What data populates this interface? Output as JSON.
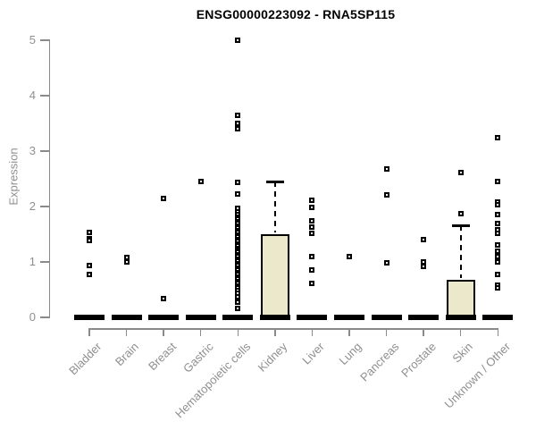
{
  "chart_data": {
    "type": "box",
    "title": "ENSG00000223092 - RNA5SP115",
    "ylabel": "Expression",
    "xlabel": "",
    "ylim": [
      0,
      5
    ],
    "yticks": [
      "0",
      "1",
      "2",
      "3",
      "4",
      "5"
    ],
    "grid": false,
    "legend": false,
    "categories": [
      "Bladder",
      "Brain",
      "Breast",
      "Gastric",
      "Hematopoietic cells",
      "Kidney",
      "Liver",
      "Lung",
      "Pancreas",
      "Prostate",
      "Skin",
      "Unknown / Other"
    ],
    "series": [
      {
        "name": "Bladder",
        "median": 0,
        "box": null,
        "points": [
          1.53,
          1.42,
          1.38,
          0.94,
          0.77
        ]
      },
      {
        "name": "Brain",
        "median": 0,
        "box": null,
        "points": [
          1.08,
          1.0
        ]
      },
      {
        "name": "Breast",
        "median": 0,
        "box": null,
        "points": [
          2.15,
          0.34
        ]
      },
      {
        "name": "Gastric",
        "median": 0,
        "box": null,
        "points": [
          2.45
        ]
      },
      {
        "name": "Hematopoietic cells",
        "median": 0,
        "box": null,
        "points": [
          5.0,
          3.65,
          3.5,
          3.4,
          2.44,
          2.23,
          1.97,
          1.9,
          1.85,
          1.81,
          1.77,
          1.73,
          1.69,
          1.65,
          1.61,
          1.57,
          1.53,
          1.49,
          1.45,
          1.41,
          1.37,
          1.33,
          1.29,
          1.25,
          1.21,
          1.17,
          1.13,
          1.09,
          1.05,
          1.01,
          0.97,
          0.93,
          0.89,
          0.85,
          0.81,
          0.77,
          0.73,
          0.69,
          0.65,
          0.61,
          0.57,
          0.53,
          0.49,
          0.44,
          0.37,
          0.27,
          0.16
        ]
      },
      {
        "name": "Kidney",
        "median": 0,
        "box": {
          "q1": 0,
          "q3": 1.5,
          "whisker_high": 2.45
        },
        "points": []
      },
      {
        "name": "Liver",
        "median": 0,
        "box": null,
        "points": [
          2.11,
          1.98,
          1.74,
          1.63,
          1.52,
          1.1,
          0.85,
          0.61
        ]
      },
      {
        "name": "Lung",
        "median": 0,
        "box": null,
        "points": [
          1.1
        ]
      },
      {
        "name": "Pancreas",
        "median": 0,
        "box": null,
        "points": [
          2.68,
          2.21,
          0.98
        ]
      },
      {
        "name": "Prostate",
        "median": 0,
        "box": null,
        "points": [
          1.4,
          1.0,
          0.92
        ]
      },
      {
        "name": "Skin",
        "median": 0,
        "box": {
          "q1": 0,
          "q3": 0.68,
          "whisker_high": 1.66
        },
        "points": [
          2.61,
          1.87
        ]
      },
      {
        "name": "Unknown / Other",
        "median": 0,
        "box": null,
        "points": [
          3.24,
          2.45,
          2.08,
          2.03,
          1.85,
          1.69,
          1.58,
          1.52,
          1.31,
          1.19,
          1.1,
          1.0,
          0.77,
          0.58,
          0.53
        ]
      }
    ],
    "colors": {
      "box_fill": "#ece8cc",
      "box_border": "#000000",
      "point": "#000000",
      "axis": "#8a8a8a",
      "tick_label": "#8f8f8f",
      "title": "#000000"
    }
  }
}
